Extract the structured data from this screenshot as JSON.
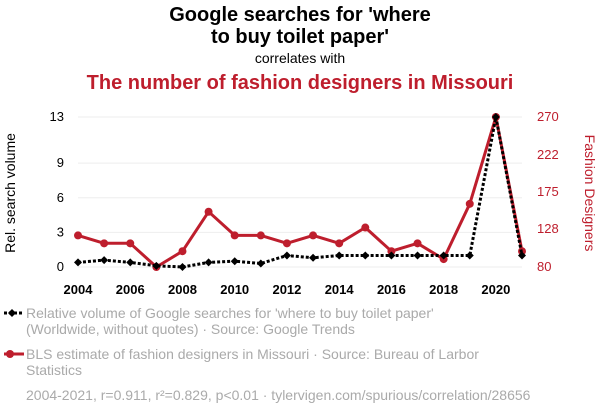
{
  "chart_data": {
    "type": "line",
    "title_line1": "Google searches for 'where",
    "title_line2": "to buy toilet paper'",
    "subtitle": "correlates with",
    "title2": "The number of fashion designers in Missouri",
    "x": [
      2004,
      2005,
      2006,
      2007,
      2008,
      2009,
      2010,
      2011,
      2012,
      2013,
      2014,
      2015,
      2016,
      2017,
      2018,
      2019,
      2020,
      2021
    ],
    "x_ticks": [
      "2004",
      "2006",
      "2008",
      "2010",
      "2012",
      "2014",
      "2016",
      "2018",
      "2020"
    ],
    "x_tick_values": [
      2004,
      2006,
      2008,
      2010,
      2012,
      2014,
      2016,
      2018,
      2020
    ],
    "xlim": [
      2004,
      2021
    ],
    "left_axis": {
      "label": "Rel. search volume",
      "ylim": [
        0,
        13
      ],
      "ticks": [
        "0",
        "3",
        "6",
        "9",
        "13"
      ],
      "tick_values": [
        0,
        3,
        6,
        9,
        13
      ]
    },
    "right_axis": {
      "label": "Fashion Designers",
      "ylim": [
        80,
        270
      ],
      "ticks": [
        "80",
        "128",
        "175",
        "222",
        "270"
      ],
      "tick_values": [
        80,
        128,
        175,
        222,
        270
      ]
    },
    "series": [
      {
        "name": "Relative volume of Google searches for 'where to buy toilet paper'",
        "legend_line1": "Relative volume of Google searches for 'where to buy toilet paper'",
        "legend_line2": "(Worldwide, without quotes) · Source: Google Trends",
        "axis": "left",
        "color": "#000000",
        "style": "dotted",
        "marker": "diamond",
        "values": [
          0.4,
          0.6,
          0.4,
          0.1,
          0.0,
          0.4,
          0.5,
          0.3,
          1.0,
          0.8,
          1.0,
          1.0,
          1.0,
          1.0,
          1.0,
          1.0,
          13.0,
          1.0
        ]
      },
      {
        "name": "BLS estimate of fashion designers in Missouri",
        "legend_line1": "BLS estimate of fashion designers in Missouri · Source: Bureau of Larbor",
        "legend_line2": "Statistics",
        "axis": "right",
        "color": "#be1e2d",
        "style": "solid",
        "marker": "circle",
        "values": [
          120,
          110,
          110,
          80,
          100,
          150,
          120,
          120,
          110,
          120,
          110,
          130,
          100,
          110,
          90,
          160,
          270,
          100
        ]
      }
    ],
    "grid": true,
    "legend_position": "bottom"
  },
  "footer": "2004-2021, r=0.911, r²=0.829, p<0.01 · tylervigen.com/spurious/correlation/28656",
  "colors": {
    "accent": "#be1e2d",
    "text": "#000000",
    "muted": "#aaaaaa",
    "grid": "#eeeeee"
  }
}
